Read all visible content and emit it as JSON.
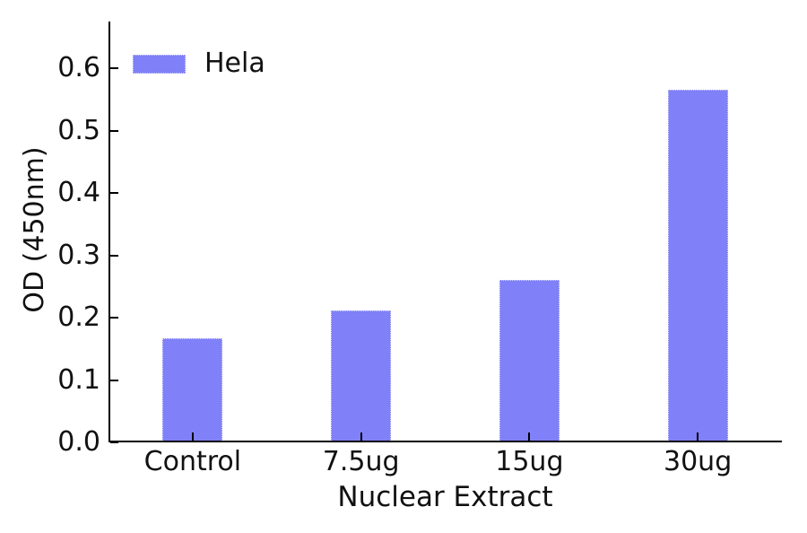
{
  "chart_data": {
    "type": "bar",
    "title": "",
    "xlabel": "Nuclear Extract",
    "ylabel": "OD (450nm)",
    "categories": [
      "Control",
      "7.5ug",
      "15ug",
      "30ug"
    ],
    "series": [
      {
        "name": "Hela",
        "color": "#8080f8",
        "values": [
          0.167,
          0.212,
          0.261,
          0.565
        ]
      }
    ],
    "ylim": [
      0,
      0.675
    ],
    "yticks": [
      0.0,
      0.1,
      0.2,
      0.3,
      0.4,
      0.5,
      0.6
    ],
    "ytick_format_decimals": 1,
    "grid": false,
    "legend_position": "upper left",
    "legend_frame": false,
    "bar_edge_color": "#d4d4f9",
    "axis_color": "#000000",
    "text_color": "#111111",
    "background_color": "#ffffff"
  }
}
